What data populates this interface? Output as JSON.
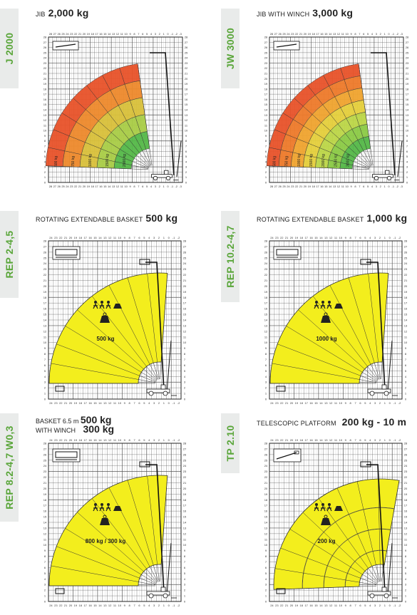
{
  "panels": [
    {
      "id": "j2000",
      "side_label": "J 2000",
      "title_small": "JIB",
      "title_big": "2,000 kg",
      "type": "jib",
      "load_labels": [
        "500 kg",
        "750 kg",
        "1000 kg",
        "1500 kg",
        "2000 kg"
      ],
      "top_ticks": "28 27 26 25 24 23 22 21 20 19 18 17 16 15 14 13 12 11 10 9 8 7 6 5 4 3 2 1 0 -1 -2 -3",
      "colors": [
        "#e8532a",
        "#ee8a2c",
        "#d9c03a",
        "#a9cd46",
        "#55b948"
      ]
    },
    {
      "id": "jw3000",
      "side_label": "JW 3000",
      "title_small": "JIB WITH WINCH",
      "title_big": "3,000 kg",
      "type": "jib",
      "load_labels": [
        "500 kg",
        "750 kg",
        "1000 kg",
        "1500 kg",
        "2000 kg",
        "2500 kg",
        "3000 kg"
      ],
      "top_ticks": "28 27 26 25 24 23 22 21 20 19 18 17 16 15 14 13 12 11 10 9 8 7 6 5 4 3 2 1 0 -1 -2 -3",
      "colors": [
        "#e8532a",
        "#ee7a2a",
        "#f0a42f",
        "#e5cf3c",
        "#bcd647",
        "#8ccb45",
        "#55b948"
      ]
    },
    {
      "id": "rep245",
      "side_label": "REP 2-4,5",
      "title_small": "ROTATING EXTENDABLE BASKET",
      "title_big": "500 kg",
      "type": "basket",
      "center_label": "500 kg",
      "top_ticks": "24 23 22 21 20 19 18 17 16 15 14 13 12 11 10 9 8 7 6 5 4 3 2 1 0 -1 -2",
      "colors": [
        "#f3ee1d"
      ]
    },
    {
      "id": "rep10247",
      "side_label": "REP 10.2-4,7",
      "title_small": "ROTATING EXTENDABLE BASKET",
      "title_big": "1,000 kg",
      "type": "basket",
      "center_label": "1000 kg",
      "top_ticks": "24 23 22 21 20 19 18 17 16 15 14 13 12 11 10 9 8 7 6 5 4 3 2 1 0 -1 -2",
      "colors": [
        "#f3ee1d"
      ]
    },
    {
      "id": "rep8247",
      "side_label": "REP 8.2-4,7 W0,3",
      "title_line1_small": "BASKET 6.5 m",
      "title_line1_big": "500 kg",
      "title_line2_small": "WITH WINCH",
      "title_line2_big": "300 kg",
      "type": "basket",
      "center_label": "800 kg / 300 kg",
      "top_ticks": "24 23 22 21 20 19 18 17 16 15 14 13 12 11 10 9 8 7 6 5 4 3 2 1 0 -1 -2",
      "colors": [
        "#f3ee1d"
      ]
    },
    {
      "id": "tp210",
      "side_label": "TP 2.10",
      "title_small": "TELESCOPIC PLATFORM",
      "title_big": "200 kg - 10 m",
      "type": "platform",
      "center_label": "200 kg",
      "top_ticks": "24 23 22 21 20 19 18 17 16 15 14 13 12 11 10 9 8 7 6 5 4 3 2 1 0 -1 -2",
      "colors": [
        "#f3ee1d"
      ]
    }
  ]
}
